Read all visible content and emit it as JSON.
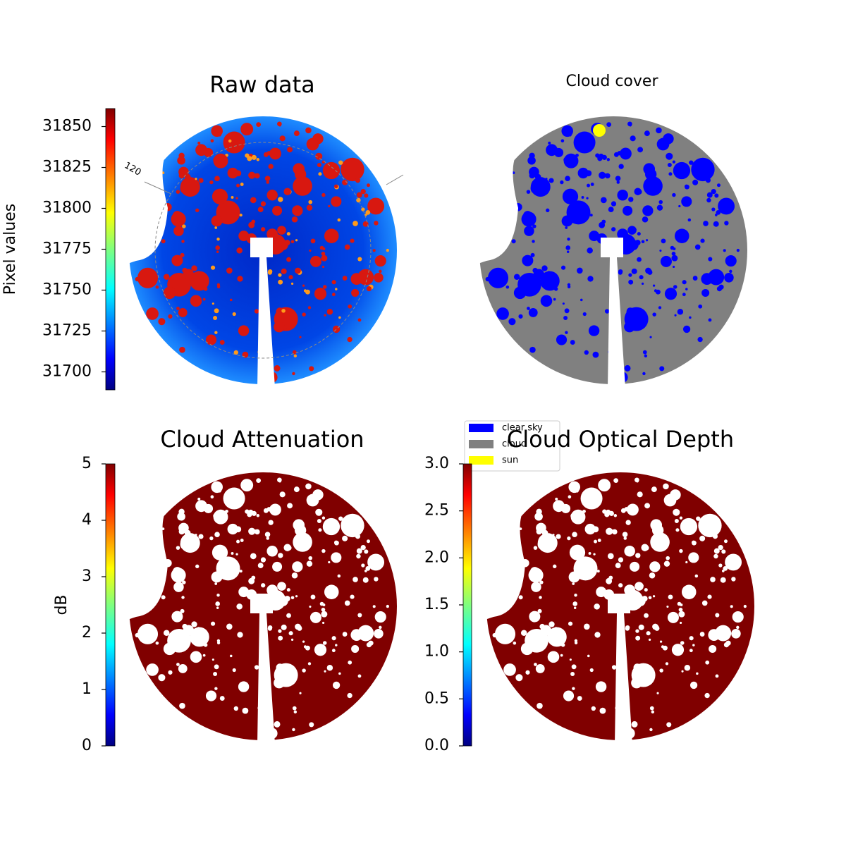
{
  "chart_data": [
    {
      "type": "image",
      "title": "Raw data",
      "colormap": "jet",
      "ylabel": "Pixel values",
      "ylim": [
        31689,
        31861
      ],
      "yticks": [
        31700,
        31725,
        31750,
        31775,
        31800,
        31825,
        31850
      ],
      "annotations": [
        "120"
      ]
    },
    {
      "type": "classified-image",
      "title": "Cloud cover",
      "legend": [
        {
          "name": "clear sky",
          "color": "#0000ff"
        },
        {
          "name": "cloud",
          "color": "#808080"
        },
        {
          "name": "sun",
          "color": "#ffff00"
        }
      ]
    },
    {
      "type": "image",
      "title": "Cloud Attenuation",
      "colormap": "jet",
      "ylabel": "dB",
      "color": "#800000",
      "ylim": [
        0,
        5
      ],
      "yticks": [
        0,
        1,
        2,
        3,
        4,
        5
      ]
    },
    {
      "type": "image",
      "title": "Cloud Optical Depth",
      "colormap": "jet",
      "color": "#800000",
      "ylim": [
        0,
        3
      ],
      "yticks": [
        {
          "value": 0,
          "label": "0.0"
        },
        {
          "value": 0.5,
          "label": "0.5"
        },
        {
          "value": 1,
          "label": "1.0"
        },
        {
          "value": 1.5,
          "label": "1.5"
        },
        {
          "value": 2,
          "label": "2.0"
        },
        {
          "value": 2.5,
          "label": "2.5"
        },
        {
          "value": 3,
          "label": "3.0"
        }
      ]
    }
  ]
}
